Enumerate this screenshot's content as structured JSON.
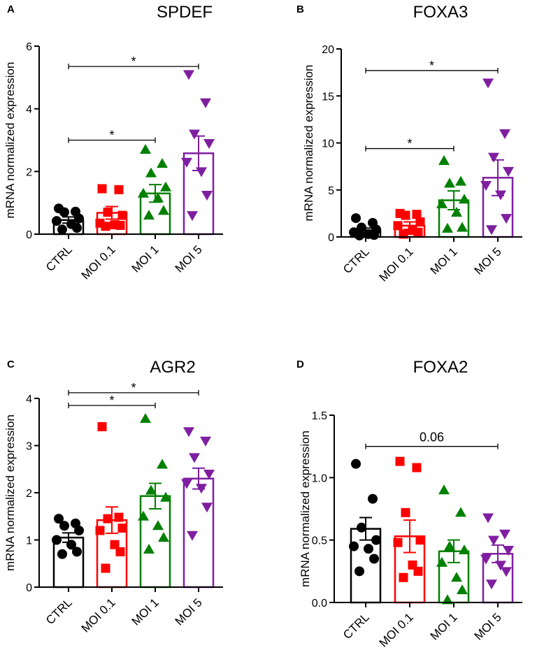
{
  "chart_data": [
    {
      "panel": "A",
      "type": "bar",
      "title": "SPDEF",
      "ylabel": "mRNA normalized expression",
      "xlabel": "",
      "ylim": [
        0,
        6
      ],
      "yticks": [
        0,
        2,
        4,
        6
      ],
      "yticklabels": [
        "0",
        "2",
        "4",
        "6"
      ],
      "categories": [
        "CTRL",
        "MOI 0.1",
        "MOI 1",
        "MOI 5"
      ],
      "colors": [
        "#000000",
        "#ff0000",
        "#008000",
        "#7f1fa0"
      ],
      "markers": [
        "circle",
        "square",
        "triangle-up",
        "triangle-down"
      ],
      "means": [
        0.45,
        0.68,
        1.3,
        2.58
      ],
      "sem": [
        0.1,
        0.2,
        0.28,
        0.55
      ],
      "points": [
        [
          0.82,
          0.72,
          0.7,
          0.5,
          0.42,
          0.32,
          0.2,
          0.15
        ],
        [
          1.45,
          1.42,
          0.7,
          0.6,
          0.35,
          0.3,
          0.28,
          0.25
        ],
        [
          2.7,
          2.25,
          1.95,
          1.5,
          1.3,
          1.15,
          0.75,
          0.6
        ],
        [
          5.1,
          4.2,
          3.2,
          2.9,
          2.3,
          2.0,
          1.25,
          0.6
        ]
      ],
      "significance": [
        {
          "from": 0,
          "to": 2,
          "y": 3.0,
          "label": "*"
        },
        {
          "from": 0,
          "to": 3,
          "y": 5.35,
          "label": "*"
        }
      ]
    },
    {
      "panel": "B",
      "type": "bar",
      "title": "FOXA3",
      "ylabel": "mRNA normalized expression",
      "xlabel": "",
      "ylim": [
        0,
        20
      ],
      "yticks": [
        0,
        5,
        10,
        15,
        20
      ],
      "yticklabels": [
        "0",
        "5",
        "10",
        "15",
        "20"
      ],
      "categories": [
        "CTRL",
        "MOI 0.1",
        "MOI 1",
        "MOI 5"
      ],
      "colors": [
        "#000000",
        "#ff0000",
        "#008000",
        "#7f1fa0"
      ],
      "markers": [
        "circle",
        "square",
        "triangle-up",
        "triangle-down"
      ],
      "means": [
        0.7,
        1.2,
        3.9,
        6.3
      ],
      "sem": [
        0.25,
        0.4,
        1.0,
        1.9
      ],
      "points": [
        [
          2.0,
          1.5,
          1.0,
          0.8,
          0.5,
          0.3,
          0.2,
          0.15
        ],
        [
          2.5,
          2.4,
          2.3,
          1.6,
          1.2,
          0.7,
          0.5,
          0.3
        ],
        [
          8.1,
          5.9,
          5.7,
          4.0,
          3.5,
          2.6,
          1.0,
          0.9
        ],
        [
          16.4,
          11.0,
          8.5,
          7.0,
          5.5,
          4.5,
          2.0,
          0.8
        ]
      ],
      "significance": [
        {
          "from": 0,
          "to": 2,
          "y": 9.4,
          "label": "*"
        },
        {
          "from": 0,
          "to": 3,
          "y": 17.7,
          "label": "*"
        }
      ]
    },
    {
      "panel": "C",
      "type": "bar",
      "title": "AGR2",
      "ylabel": "mRNA normalized expression",
      "xlabel": "",
      "ylim": [
        0,
        4
      ],
      "yticks": [
        0,
        1,
        2,
        3,
        4
      ],
      "yticklabels": [
        "0",
        "1",
        "2",
        "3",
        "4"
      ],
      "categories": [
        "CTRL",
        "MOI 0.1",
        "MOI 1",
        "MOI 5"
      ],
      "colors": [
        "#000000",
        "#ff0000",
        "#008000",
        "#7f1fa0"
      ],
      "markers": [
        "circle",
        "square",
        "triangle-up",
        "triangle-down"
      ],
      "means": [
        1.05,
        1.42,
        1.93,
        2.3
      ],
      "sem": [
        0.1,
        0.28,
        0.27,
        0.22
      ],
      "points": [
        [
          1.45,
          1.35,
          1.3,
          1.2,
          1.0,
          0.9,
          0.75,
          0.7
        ],
        [
          3.4,
          1.48,
          1.45,
          1.25,
          1.2,
          0.9,
          0.75,
          0.4
        ],
        [
          3.57,
          2.6,
          2.05,
          1.9,
          1.5,
          1.3,
          1.05,
          0.8
        ],
        [
          3.3,
          3.1,
          2.75,
          2.4,
          2.2,
          2.1,
          1.7,
          1.1
        ]
      ],
      "significance": [
        {
          "from": 0,
          "to": 2,
          "y": 3.85,
          "label": "*"
        },
        {
          "from": 0,
          "to": 3,
          "y": 4.12,
          "label": "*"
        }
      ]
    },
    {
      "panel": "D",
      "type": "bar",
      "title": "FOXA2",
      "ylabel": "mRNA normalized expression",
      "xlabel": "",
      "ylim": [
        0,
        1.5
      ],
      "yticks": [
        0,
        0.5,
        1.0,
        1.5
      ],
      "yticklabels": [
        "0.0",
        "0.5",
        "1.0",
        "1.5"
      ],
      "categories": [
        "CTRL",
        "MOI 0.1",
        "MOI 1",
        "MOI 5"
      ],
      "colors": [
        "#000000",
        "#ff0000",
        "#008000",
        "#7f1fa0"
      ],
      "markers": [
        "circle",
        "square",
        "triangle-up",
        "triangle-down"
      ],
      "means": [
        0.59,
        0.53,
        0.41,
        0.39
      ],
      "sem": [
        0.09,
        0.13,
        0.09,
        0.07
      ],
      "points": [
        [
          1.11,
          0.83,
          0.6,
          0.5,
          0.45,
          0.43,
          0.35,
          0.25
        ],
        [
          1.13,
          1.08,
          0.72,
          0.5,
          0.48,
          0.3,
          0.25,
          0.2
        ],
        [
          0.9,
          0.72,
          0.45,
          0.42,
          0.32,
          0.2,
          0.1,
          0.02
        ],
        [
          0.68,
          0.55,
          0.5,
          0.42,
          0.35,
          0.3,
          0.25,
          0.15
        ]
      ],
      "significance": [
        {
          "from": 0,
          "to": 3,
          "y": 1.25,
          "label": "0.06"
        }
      ]
    }
  ]
}
